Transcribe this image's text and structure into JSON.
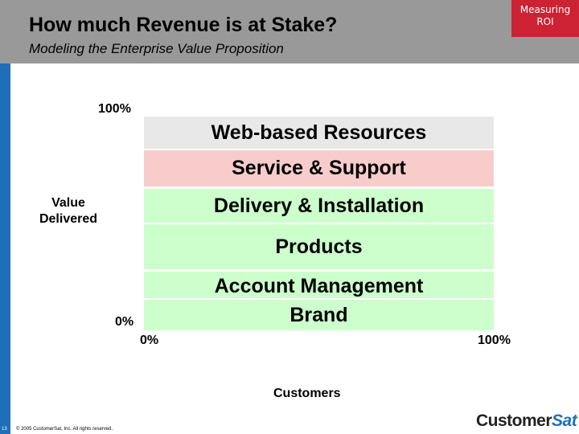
{
  "slide": {
    "title": "How much Revenue is at Stake?",
    "subtitle": "Modeling the Enterprise Value Proposition",
    "badge": "Measuring ROI",
    "page_number": "13",
    "copyright": "© 2005 CustomerSat, Inc.  All rights reserved.",
    "logo": {
      "part1": "Customer",
      "part2": "Sat"
    }
  },
  "axes": {
    "y_top": "100%",
    "y_bottom": "0%",
    "y_title": "Value Delivered",
    "x_left": "0%",
    "x_right": "100%",
    "x_title": "Customers"
  },
  "segments": [
    {
      "label": "Web-based Resources",
      "color": "#e8e8e8"
    },
    {
      "label": "Service & Support",
      "color": "#f9cccc"
    },
    {
      "label": "Delivery & Installation",
      "color": "#ccffcc"
    },
    {
      "label": "Products",
      "color": "#ccffcc"
    },
    {
      "label": "Account Management",
      "color": "#ccffcc"
    },
    {
      "label": "Brand",
      "color": "#ccffcc"
    }
  ],
  "colors": {
    "header": "#999999",
    "badge": "#cc2233",
    "left_bar": "#1f6fb8"
  }
}
